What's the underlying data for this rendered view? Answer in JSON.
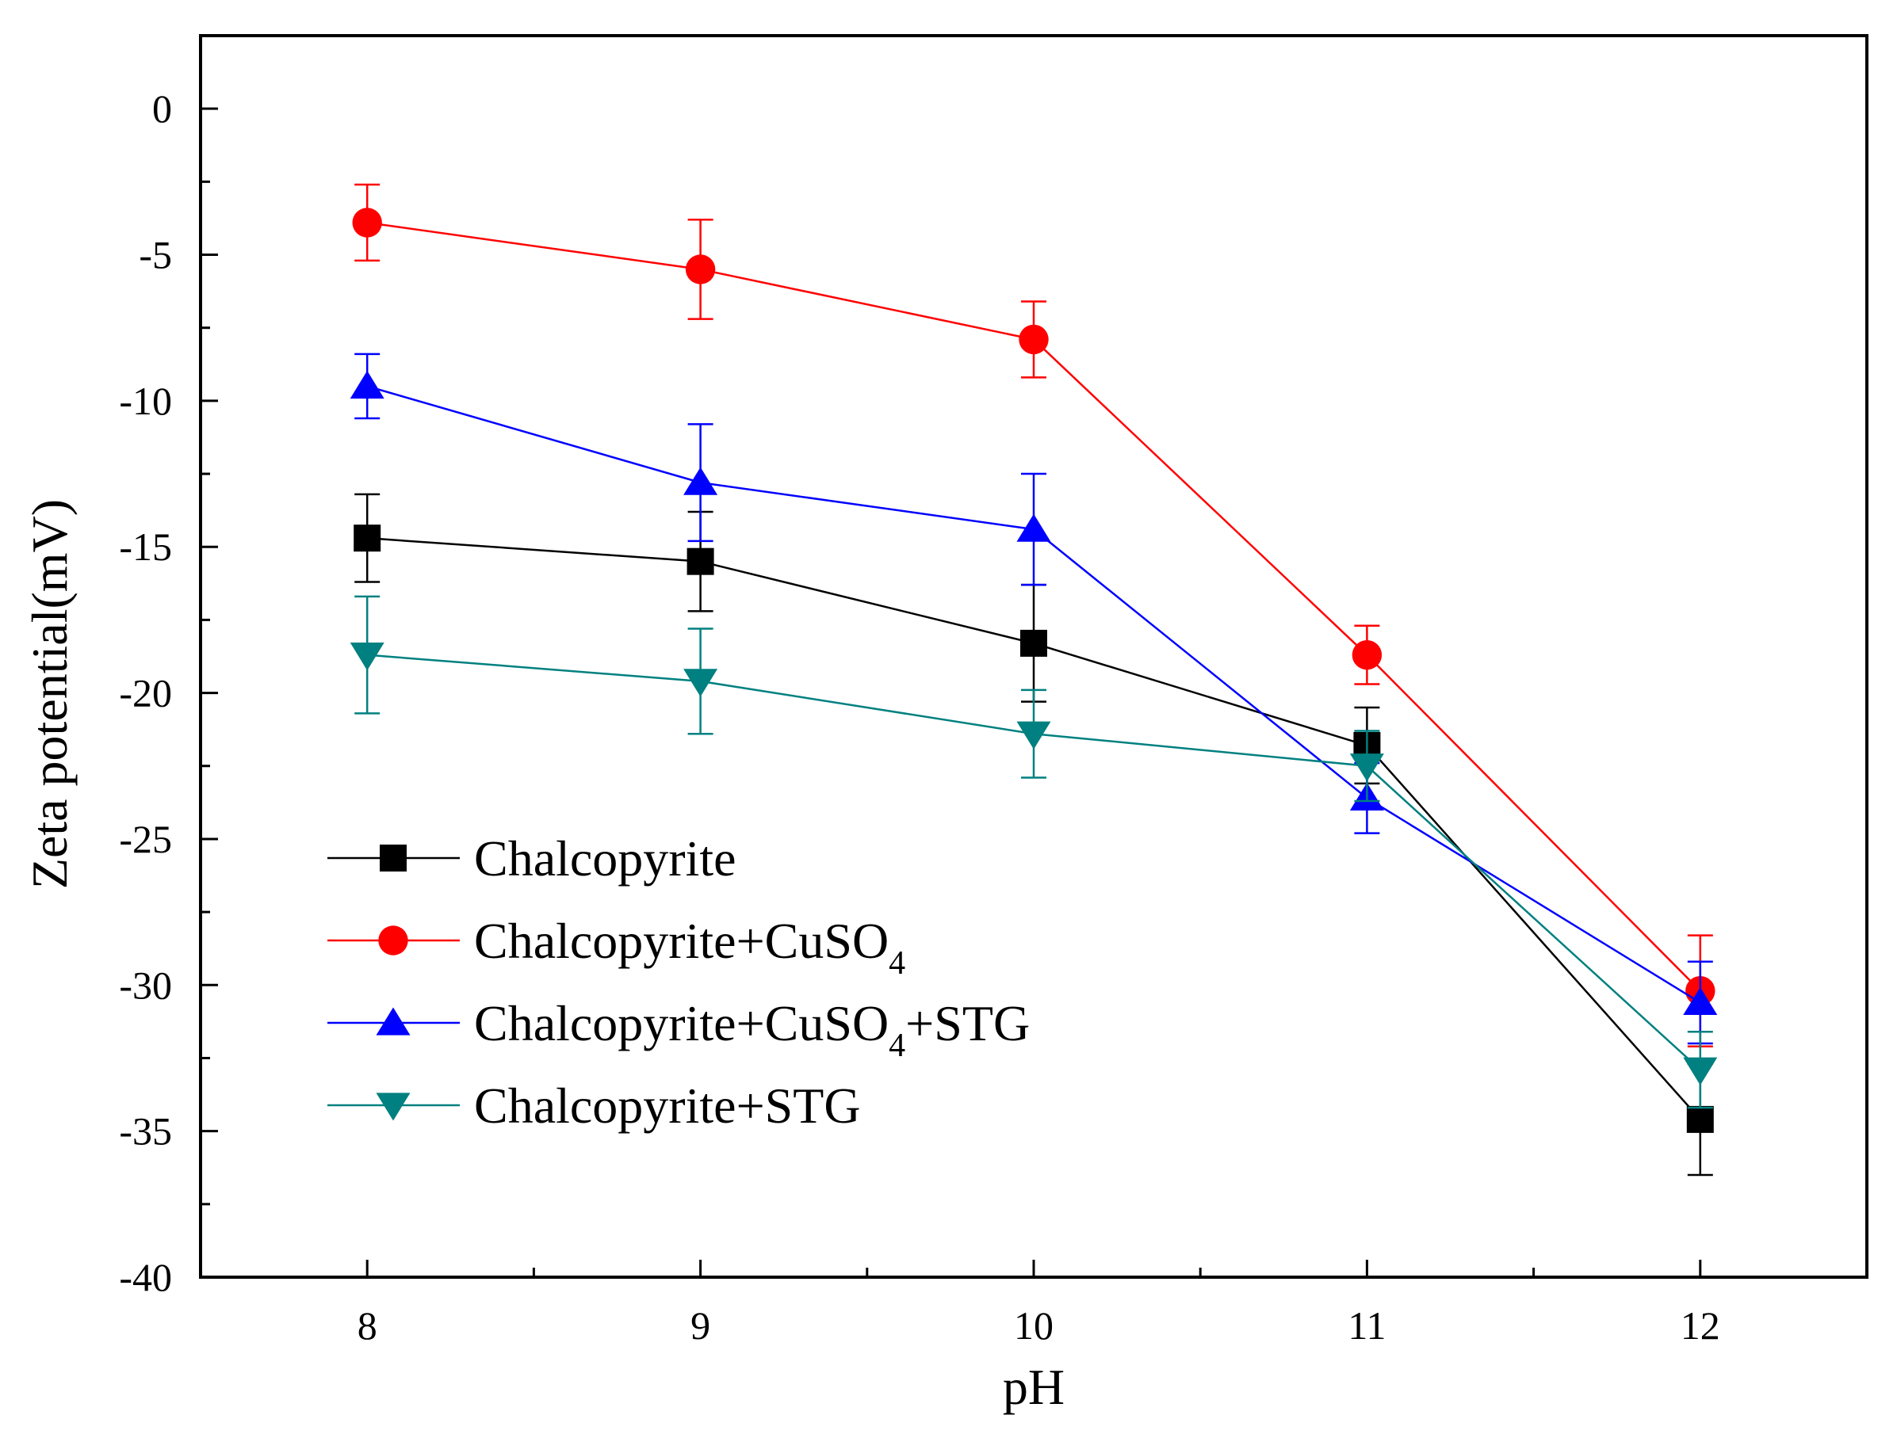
{
  "chart_data": {
    "type": "line",
    "title": "",
    "xlabel": "pH",
    "ylabel": "Zeta potential(mV)",
    "xlim": [
      7.5,
      12.5
    ],
    "ylim": [
      -40,
      2.5
    ],
    "x_ticks": [
      8,
      9,
      10,
      11,
      12
    ],
    "x_tick_labels": [
      "8",
      "9",
      "10",
      "11",
      "12"
    ],
    "x_minor_ticks": [
      8.5,
      9.5,
      10.5,
      11.5
    ],
    "y_ticks": [
      0,
      -5,
      -10,
      -15,
      -20,
      -25,
      -30,
      -35,
      -40
    ],
    "y_tick_labels": [
      "0",
      "-5",
      "-10",
      "-15",
      "-20",
      "-25",
      "-30",
      "-35",
      "-40"
    ],
    "y_minor_ticks": [
      -2.5,
      -7.5,
      -12.5,
      -17.5,
      -22.5,
      -27.5,
      -32.5,
      -37.5
    ],
    "grid": false,
    "legend_position": "lower-left",
    "x": [
      8,
      9,
      10,
      11,
      12
    ],
    "series": [
      {
        "name": "Chalcopyrite",
        "name_main": "Chalcopyrite",
        "name_parts": [
          {
            "text": "Chalcopyrite",
            "sub": false
          }
        ],
        "marker": "square",
        "color": "#000000",
        "values": [
          -14.7,
          -15.5,
          -18.3,
          -21.8,
          -34.6
        ],
        "errors": [
          1.5,
          1.7,
          2.0,
          1.3,
          1.9
        ]
      },
      {
        "name": "Chalcopyrite+CuSO4",
        "name_parts": [
          {
            "text": "Chalcopyrite+CuSO",
            "sub": false
          },
          {
            "text": "4",
            "sub": true
          }
        ],
        "marker": "circle",
        "color": "#ff0000",
        "values": [
          -3.9,
          -5.5,
          -7.9,
          -18.7,
          -30.2
        ],
        "errors": [
          1.3,
          1.7,
          1.3,
          1.0,
          1.9
        ]
      },
      {
        "name": "Chalcopyrite+CuSO4+STG",
        "name_parts": [
          {
            "text": "Chalcopyrite+CuSO",
            "sub": false
          },
          {
            "text": "4",
            "sub": true
          },
          {
            "text": "+STG",
            "sub": false
          }
        ],
        "marker": "triangle-up",
        "color": "#0000ff",
        "values": [
          -9.5,
          -12.8,
          -14.4,
          -23.6,
          -30.6
        ],
        "errors": [
          1.1,
          2.0,
          1.9,
          1.2,
          1.4
        ]
      },
      {
        "name": "Chalcopyrite+STG",
        "name_parts": [
          {
            "text": "Chalcopyrite+STG",
            "sub": false
          }
        ],
        "marker": "triangle-down",
        "color": "#008080",
        "values": [
          -18.7,
          -19.6,
          -21.4,
          -22.5,
          -32.9
        ],
        "errors": [
          2.0,
          1.8,
          1.5,
          1.2,
          1.3
        ]
      }
    ]
  }
}
